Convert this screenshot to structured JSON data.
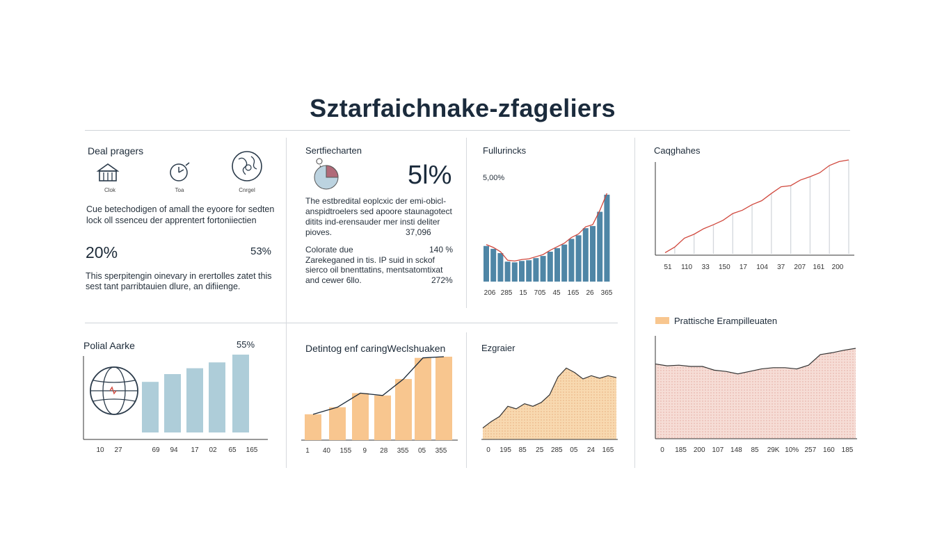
{
  "title": "Sztarfaichnake-zfageliers",
  "panels": {
    "p1": {
      "title": "Deal pragers",
      "icon_labels": [
        "Clok",
        "Toa",
        "Cnrgel"
      ],
      "icons": [
        "building-icon",
        "clock-icon",
        "globe-icon"
      ],
      "text1": [
        "Cue betechodigen of amall the eyoore for sedten",
        "lock oll ssenceu der apprentert fortoniiectien"
      ],
      "stat_left": "20%",
      "stat_right": "53%",
      "text2": [
        "This sperpitengin oinevary in erertolles zatet this",
        "sest tant parribtauien dlure, an difiienge."
      ]
    },
    "p2": {
      "title": "Sertfiecharten",
      "big_value": "5l%",
      "pie_fraction": 0.25,
      "text1": [
        "The estbredital eoplcxic der emi-obicl-",
        "anspidtroelers sed apoore staunagotect",
        "ditits ind-erensauder mer insti deliter"
      ],
      "text1_last": "pioves.",
      "text1_value": "37,096",
      "rows": [
        {
          "label": "Colorate due",
          "value": "140 %"
        },
        {
          "label": "Zarekeganed in tis. IP suid in sckof",
          "value": ""
        },
        {
          "label": "sierco oil bnenttatins, mentsatomtixat",
          "value": ""
        },
        {
          "label": "and cewer 6llo.",
          "value": "272%"
        }
      ]
    },
    "p3": {
      "title": "Fullurincks",
      "note": "5,00%"
    },
    "p4": {
      "title": "Caqghahes"
    },
    "p5": {
      "title": "Polial Aarke",
      "value": "55%"
    },
    "p6": {
      "title": "Detintog enf caringWeclshuaken"
    },
    "p7": {
      "title": "Ezgraier"
    },
    "p8": {
      "legend": "Prattische Erampilleuaten"
    }
  },
  "chart_data": [
    {
      "id": "p3",
      "type": "bar",
      "overlay": "line",
      "colors": {
        "bar": "#4f86a6",
        "line": "#d0473c"
      },
      "xlabels": [
        "206",
        "285",
        "15",
        "705",
        "45",
        "165",
        "26",
        "365"
      ],
      "values": [
        50,
        46,
        40,
        28,
        27,
        29,
        30,
        33,
        36,
        42,
        47,
        52,
        60,
        65,
        75,
        78,
        98,
        122
      ]
    },
    {
      "id": "p4",
      "type": "bar",
      "style": "outline-step",
      "colors": {
        "bar": "#d3d7dc",
        "line": "#d0473c"
      },
      "xlabels": [
        "51",
        "110",
        "33",
        "150",
        "17",
        "104",
        "37",
        "207",
        "161",
        "200"
      ],
      "values": [
        2,
        12,
        28,
        35,
        45,
        52,
        60,
        72,
        78,
        88,
        95,
        108,
        120,
        122,
        132,
        138,
        145,
        158,
        165,
        168
      ]
    },
    {
      "id": "p5",
      "type": "bar",
      "colors": {
        "bar": "#aecdd9"
      },
      "xlabels": [
        "10",
        "27",
        "69",
        "94",
        "17",
        "02",
        "65",
        "165"
      ],
      "values": [
        52,
        60,
        66,
        72,
        80
      ]
    },
    {
      "id": "p6",
      "type": "bar",
      "overlay": "line",
      "colors": {
        "bar": "#f8c68f",
        "line": "#1c2a38"
      },
      "xlabels": [
        "1",
        "40",
        "155",
        "9",
        "28",
        "355",
        "05",
        "355"
      ],
      "values": [
        22,
        28,
        40,
        38,
        52,
        70,
        71
      ]
    },
    {
      "id": "p7",
      "type": "area",
      "colors": {
        "fill": "#f8d9b0",
        "line": "#333333"
      },
      "xlabels": [
        "0",
        "195",
        "85",
        "25",
        "285",
        "05",
        "24",
        "165"
      ],
      "values": [
        18,
        28,
        36,
        52,
        48,
        56,
        52,
        58,
        70,
        98,
        112,
        105,
        95,
        100,
        96,
        100,
        97
      ]
    },
    {
      "id": "p8",
      "type": "area",
      "colors": {
        "fill": "#f6ddd6",
        "line": "#333333",
        "legend": "#f8c68f"
      },
      "xlabels": [
        "0",
        "185",
        "200",
        "107",
        "148",
        "85",
        "29K",
        "10%",
        "257",
        "160",
        "185"
      ],
      "values": [
        120,
        117,
        118,
        116,
        116,
        110,
        108,
        104,
        108,
        112,
        114,
        114,
        112,
        118,
        135,
        138,
        142,
        145
      ]
    }
  ]
}
